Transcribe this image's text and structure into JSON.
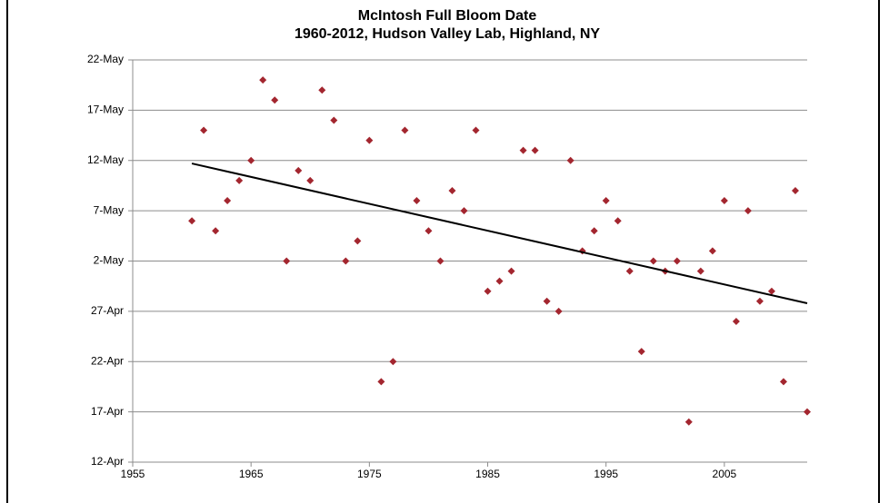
{
  "chart_data": {
    "type": "scatter",
    "title": "McIntosh Full Bloom Date",
    "subtitle": "1960-2012, Hudson Valley Lab, Highland, NY",
    "color": "#a3262f",
    "x": [
      1960,
      1961,
      1962,
      1963,
      1964,
      1965,
      1966,
      1967,
      1968,
      1969,
      1970,
      1971,
      1972,
      1973,
      1974,
      1975,
      1976,
      1977,
      1978,
      1979,
      1980,
      1981,
      1982,
      1983,
      1984,
      1985,
      1986,
      1987,
      1988,
      1989,
      1990,
      1991,
      1992,
      1993,
      1994,
      1995,
      1996,
      1997,
      1998,
      1999,
      2000,
      2001,
      2002,
      2003,
      2004,
      2005,
      2006,
      2007,
      2008,
      2009,
      2010,
      2011,
      2012
    ],
    "values": [
      126,
      135,
      125,
      128,
      130,
      132,
      140,
      138,
      122,
      131,
      130,
      139,
      136,
      122,
      124,
      134,
      110,
      112,
      135,
      128,
      125,
      122,
      129,
      127,
      135,
      119,
      120,
      121,
      133,
      133,
      118,
      117,
      132,
      123,
      125,
      128,
      126,
      121,
      113,
      122,
      121,
      122,
      106,
      121,
      123,
      128,
      116,
      127,
      118,
      119,
      110,
      129,
      107
    ],
    "trend": {
      "x": [
        1960,
        2012
      ],
      "values": [
        131.7,
        117.8
      ],
      "color": "#000000"
    },
    "xlim": [
      1955,
      2012
    ],
    "xticks": [
      1955,
      1965,
      1975,
      1985,
      1995,
      2005
    ],
    "ylim": [
      102,
      142
    ],
    "yticks": [
      {
        "value": 102,
        "label": "12-Apr"
      },
      {
        "value": 107,
        "label": "17-Apr"
      },
      {
        "value": 112,
        "label": "22-Apr"
      },
      {
        "value": 117,
        "label": "27-Apr"
      },
      {
        "value": 122,
        "label": "2-May"
      },
      {
        "value": 127,
        "label": "7-May"
      },
      {
        "value": 132,
        "label": "12-May"
      },
      {
        "value": 137,
        "label": "17-May"
      },
      {
        "value": 142,
        "label": "22-May"
      }
    ],
    "grid": true
  }
}
